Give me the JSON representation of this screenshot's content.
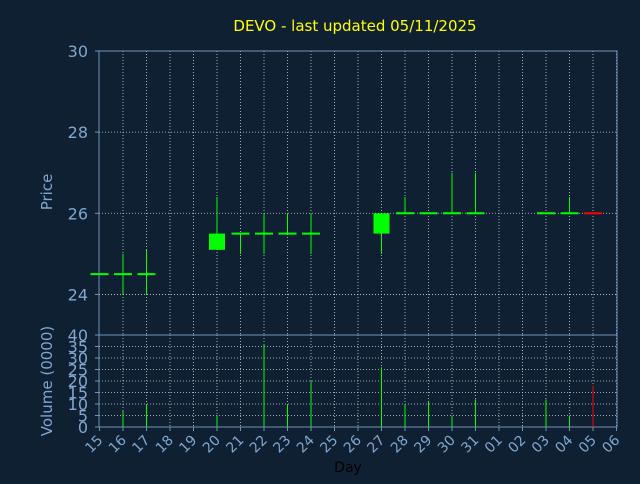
{
  "chart_data": [
    {
      "type": "candlestick",
      "title": "DEVO - last updated 05/11/2025",
      "ylabel": "Price",
      "ylim": [
        23,
        30
      ],
      "yticks": [
        24,
        26,
        28,
        30
      ],
      "grid": true,
      "categories": [
        "15",
        "16",
        "17",
        "18",
        "19",
        "20",
        "21",
        "22",
        "23",
        "24",
        "25",
        "26",
        "27",
        "28",
        "29",
        "30",
        "31",
        "01",
        "02",
        "03",
        "04",
        "05",
        "06"
      ],
      "candles": [
        {
          "x": "15",
          "open": 24.5,
          "high": 24.5,
          "low": 24.5,
          "close": 24.5
        },
        {
          "x": "16",
          "open": 24.5,
          "high": 25.0,
          "low": 24.0,
          "close": 24.5
        },
        {
          "x": "17",
          "open": 24.5,
          "high": 25.1,
          "low": 24.0,
          "close": 24.5
        },
        {
          "x": "20",
          "open": 25.1,
          "high": 26.4,
          "low": 25.1,
          "close": 25.5
        },
        {
          "x": "21",
          "open": 25.5,
          "high": 25.5,
          "low": 25.0,
          "close": 25.5
        },
        {
          "x": "22",
          "open": 25.5,
          "high": 26.0,
          "low": 25.0,
          "close": 25.5
        },
        {
          "x": "23",
          "open": 25.5,
          "high": 26.0,
          "low": 25.5,
          "close": 25.5
        },
        {
          "x": "24",
          "open": 25.5,
          "high": 26.0,
          "low": 25.0,
          "close": 25.5
        },
        {
          "x": "27",
          "open": 25.5,
          "high": 26.0,
          "low": 25.0,
          "close": 26.0
        },
        {
          "x": "28",
          "open": 26.0,
          "high": 26.4,
          "low": 26.0,
          "close": 26.0
        },
        {
          "x": "29",
          "open": 26.0,
          "high": 26.0,
          "low": 26.0,
          "close": 26.0
        },
        {
          "x": "30",
          "open": 26.0,
          "high": 27.0,
          "low": 26.0,
          "close": 26.0
        },
        {
          "x": "31",
          "open": 26.0,
          "high": 27.0,
          "low": 26.0,
          "close": 26.0
        },
        {
          "x": "03",
          "open": 26.0,
          "high": 26.0,
          "low": 26.0,
          "close": 26.0
        },
        {
          "x": "04",
          "open": 26.0,
          "high": 26.4,
          "low": 26.0,
          "close": 26.0
        },
        {
          "x": "05",
          "open": 26.0,
          "high": 26.0,
          "low": 26.0,
          "close": 26.0,
          "down": true
        }
      ]
    },
    {
      "type": "bar",
      "ylabel": "Volume (0000)",
      "xlabel": "Day",
      "ylim": [
        0,
        40
      ],
      "yticks": [
        0,
        5,
        10,
        15,
        20,
        25,
        30,
        35,
        40
      ],
      "grid": true,
      "categories": [
        "15",
        "16",
        "17",
        "18",
        "19",
        "20",
        "21",
        "22",
        "23",
        "24",
        "25",
        "26",
        "27",
        "28",
        "29",
        "30",
        "31",
        "01",
        "02",
        "03",
        "04",
        "05",
        "06"
      ],
      "values": [
        {
          "x": "16",
          "v": 7
        },
        {
          "x": "17",
          "v": 10
        },
        {
          "x": "20",
          "v": 5
        },
        {
          "x": "22",
          "v": 36
        },
        {
          "x": "23",
          "v": 10
        },
        {
          "x": "24",
          "v": 20
        },
        {
          "x": "27",
          "v": 26
        },
        {
          "x": "28",
          "v": 10
        },
        {
          "x": "29",
          "v": 11
        },
        {
          "x": "30",
          "v": 5
        },
        {
          "x": "31",
          "v": 12
        },
        {
          "x": "03",
          "v": 12
        },
        {
          "x": "04",
          "v": 5
        },
        {
          "x": "05",
          "v": 18,
          "down": true
        }
      ]
    }
  ],
  "colors": {
    "background": "#102033",
    "axis": "#6f93b8",
    "text": "#7fa7cf",
    "title": "#ffff00",
    "grid": "#c8d2dc",
    "up": "#00ff00",
    "down": "#ff0000",
    "xlabel": "#000000"
  }
}
